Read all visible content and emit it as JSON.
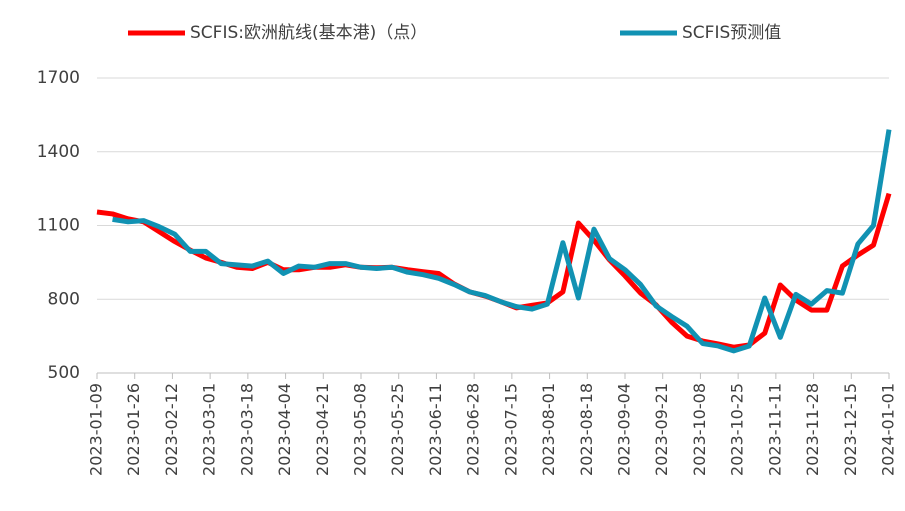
{
  "chart_data": {
    "type": "line",
    "x": [
      "2023-01-09",
      "2023-01-16",
      "2023-01-23",
      "2023-01-30",
      "2023-02-06",
      "2023-02-13",
      "2023-02-20",
      "2023-02-27",
      "2023-03-06",
      "2023-03-13",
      "2023-03-20",
      "2023-03-27",
      "2023-04-03",
      "2023-04-10",
      "2023-04-17",
      "2023-04-24",
      "2023-05-01",
      "2023-05-08",
      "2023-05-15",
      "2023-05-22",
      "2023-05-29",
      "2023-06-05",
      "2023-06-12",
      "2023-06-19",
      "2023-06-26",
      "2023-07-03",
      "2023-07-10",
      "2023-07-17",
      "2023-07-24",
      "2023-07-31",
      "2023-08-07",
      "2023-08-14",
      "2023-08-21",
      "2023-08-28",
      "2023-09-04",
      "2023-09-11",
      "2023-09-18",
      "2023-09-25",
      "2023-10-02",
      "2023-10-09",
      "2023-10-16",
      "2023-10-23",
      "2023-10-30",
      "2023-11-06",
      "2023-11-13",
      "2023-11-20",
      "2023-11-27",
      "2023-12-04",
      "2023-12-11",
      "2023-12-18",
      "2023-12-25",
      "2024-01-01"
    ],
    "series": [
      {
        "name": "SCFIS:欧洲航线(基本港)（点）",
        "color": "#ff0000",
        "values": [
          1155,
          1147,
          1127,
          1115,
          1075,
          1035,
          1000,
          968,
          950,
          930,
          925,
          950,
          920,
          920,
          930,
          930,
          940,
          930,
          928,
          930,
          920,
          912,
          905,
          862,
          830,
          813,
          790,
          765,
          775,
          785,
          830,
          1110,
          1040,
          960,
          895,
          825,
          777,
          707,
          650,
          630,
          618,
          605,
          614,
          662,
          858,
          797,
          756,
          756,
          935,
          980,
          1020,
          1230
        ]
      },
      {
        "name": "SCFIS预测值",
        "color": "#1192b3",
        "values": [
          null,
          1125,
          1115,
          1120,
          1095,
          1065,
          995,
          995,
          945,
          940,
          935,
          955,
          905,
          935,
          930,
          945,
          945,
          930,
          925,
          930,
          910,
          900,
          885,
          860,
          830,
          815,
          790,
          770,
          760,
          780,
          1030,
          805,
          1085,
          965,
          920,
          860,
          773,
          730,
          690,
          620,
          610,
          590,
          610,
          805,
          645,
          820,
          780,
          835,
          825,
          1025,
          1100,
          1490
        ]
      }
    ],
    "xlim": [
      "2023-01-09",
      "2024-01-01"
    ],
    "xticks": [
      "2023-01-09",
      "2023-01-26",
      "2023-02-12",
      "2023-03-01",
      "2023-03-18",
      "2023-04-04",
      "2023-04-21",
      "2023-05-08",
      "2023-05-25",
      "2023-06-11",
      "2023-06-28",
      "2023-07-15",
      "2023-08-01",
      "2023-08-18",
      "2023-09-04",
      "2023-09-21",
      "2023-10-08",
      "2023-10-25",
      "2023-11-11",
      "2023-11-28",
      "2023-12-15",
      "2024-01-01"
    ],
    "ylim": [
      500,
      1700
    ],
    "yticks": [
      500,
      800,
      1100,
      1400,
      1700
    ],
    "grid": true,
    "legend": "top"
  }
}
